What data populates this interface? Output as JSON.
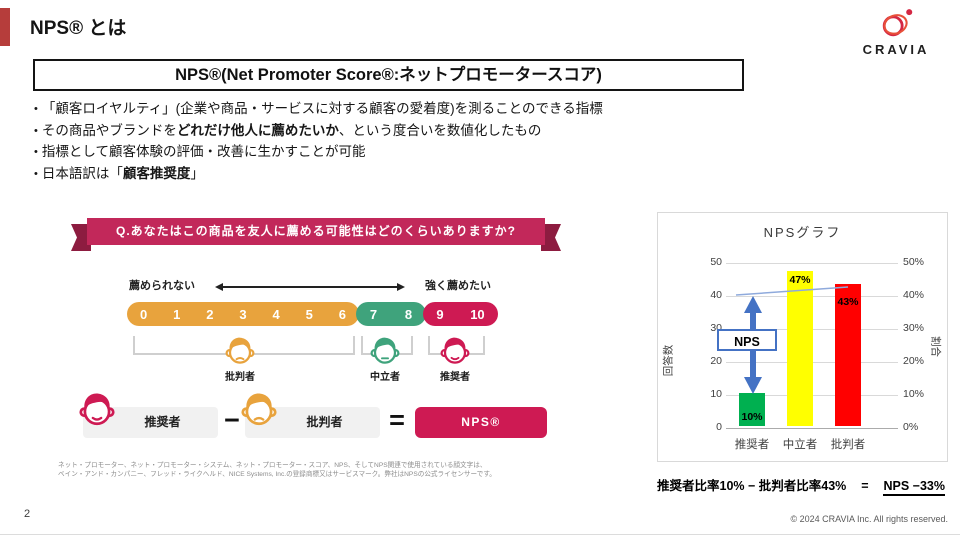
{
  "slide": {
    "title": "NPS® とは",
    "page_number": "2",
    "copyright": "© 2024 CRAVIA Inc. All rights reserved.",
    "logo_text": "CRAVIA"
  },
  "definition_box": {
    "text": "NPS®(Net Promoter Score®:ネットプロモータースコア)"
  },
  "bullets": [
    {
      "pre": "「顧客ロイヤルティ」(企業や商品・サービスに対する顧客の愛着度)を測ることのできる指標",
      "bold": "",
      "post": ""
    },
    {
      "pre": "その商品やブランドを",
      "bold": "どれだけ他人に薦めたいか",
      "post": "、という度合いを数値化したもの"
    },
    {
      "pre": "指標として顧客体験の評価・改善に生かすことが可能",
      "bold": "",
      "post": ""
    },
    {
      "pre": "日本語訳は「",
      "bold": "顧客推奨度",
      "post": "」"
    }
  ],
  "infographic": {
    "question": "Q.あなたはこの商品を友人に薦める可能性はどのくらいありますか?",
    "scale": {
      "left_label": "薦められない",
      "right_label": "強く薦めたい",
      "detractor_numbers": [
        "0",
        "1",
        "2",
        "3",
        "4",
        "5",
        "6"
      ],
      "passive_numbers": [
        "7",
        "8"
      ],
      "promoter_numbers": [
        "9",
        "10"
      ]
    },
    "groups": {
      "detractor": "批判者",
      "passive": "中立者",
      "promoter": "推奨者"
    },
    "equation": {
      "promoter": "推奨者",
      "minus": "−",
      "detractor": "批判者",
      "equals": "=",
      "result": "NPS®"
    },
    "disclaimer_line1": "ネット・プロモーター、ネット・プロモーター・システム、ネット・プロモーター・スコア、NPS、そしてNPS関連で使用されている顔文字は、",
    "disclaimer_line2": "ベイン・アンド・カンパニー、フレッド・ライクヘルド、NICE Systems, Inc.の登録商標又はサービスマーク。弊社はNPSの公式ライセンサーです。"
  },
  "chart_data": {
    "type": "bar",
    "title": "NPSグラフ",
    "categories": [
      "推奨者",
      "中立者",
      "批判者"
    ],
    "values": [
      10,
      47,
      43
    ],
    "data_labels": [
      "10%",
      "47%",
      "43%"
    ],
    "bar_colors": [
      "#00b050",
      "#ffff00",
      "#ff0000"
    ],
    "left_axis": {
      "label": "回答数",
      "range": [
        0,
        50
      ],
      "ticks_top_down": [
        "50",
        "40",
        "30",
        "20",
        "10",
        "0"
      ]
    },
    "right_axis": {
      "label": "割合",
      "range_percent": [
        0,
        50
      ],
      "ticks_top_down": [
        "50%",
        "40%",
        "30%",
        "20%",
        "10%",
        "0%"
      ]
    },
    "annotation_label": "NPS",
    "grid": true,
    "legend_position": "none"
  },
  "formula": {
    "left": "推奨者比率10% − 批判者比率43%",
    "equals": "=",
    "result": "NPS −33%"
  },
  "colors": {
    "accent_bar": "#b63d3b",
    "ribbon": "#c2285a",
    "ribbon_dark": "#8d1c40",
    "detractor": "#e8a33d",
    "passive": "#3fa37c",
    "promoter": "#ce1a53",
    "annotation_blue": "#4472c4",
    "logo_red": "#d42743"
  }
}
